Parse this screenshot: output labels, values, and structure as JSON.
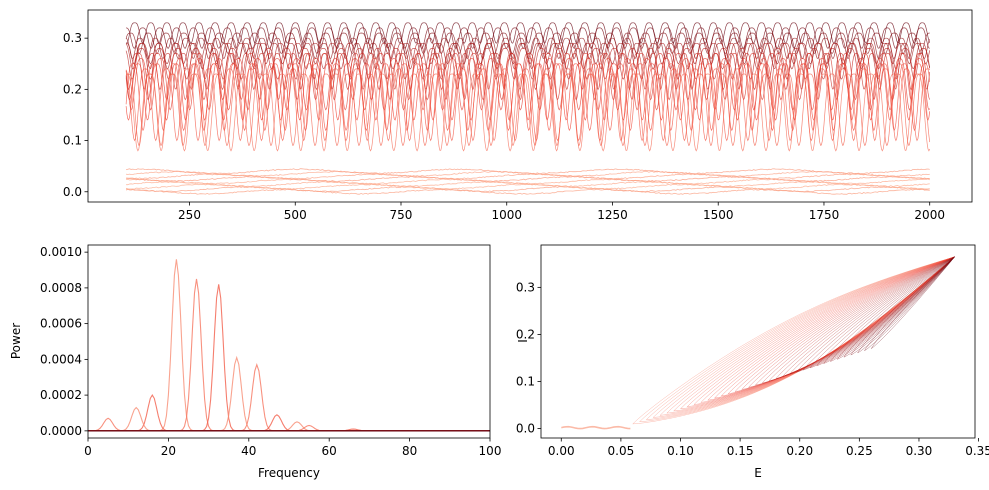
{
  "chart_data": [
    {
      "type": "line",
      "title": "",
      "xlabel": "",
      "ylabel": "",
      "xlim": [
        10,
        2100
      ],
      "ylim": [
        -0.02,
        0.355
      ],
      "xticks": [
        250,
        500,
        750,
        1000,
        1250,
        1500,
        1750,
        2000
      ],
      "yticks": [
        0.0,
        0.1,
        0.2,
        0.3
      ],
      "ytick_labels": [
        "0.0",
        "0.1",
        "0.2",
        "0.3"
      ],
      "grid": false,
      "series_count": 40,
      "t_range": [
        100,
        2000
      ],
      "colors": {
        "light": "#fcae91",
        "mid": "#ef3b2c",
        "dark": "#67000d"
      },
      "oscillating_bands": [
        {
          "min": 0.29,
          "max": 0.33,
          "period": 38
        },
        {
          "min": 0.28,
          "max": 0.32,
          "period": 40
        },
        {
          "min": 0.27,
          "max": 0.31,
          "period": 42
        },
        {
          "min": 0.26,
          "max": 0.3,
          "period": 36
        },
        {
          "min": 0.25,
          "max": 0.29,
          "period": 39
        },
        {
          "min": 0.24,
          "max": 0.29,
          "period": 41
        },
        {
          "min": 0.22,
          "max": 0.28,
          "period": 43
        },
        {
          "min": 0.2,
          "max": 0.27,
          "period": 37
        },
        {
          "min": 0.18,
          "max": 0.27,
          "period": 44
        },
        {
          "min": 0.16,
          "max": 0.26,
          "period": 46
        },
        {
          "min": 0.14,
          "max": 0.25,
          "period": 45
        },
        {
          "min": 0.12,
          "max": 0.25,
          "period": 48
        },
        {
          "min": 0.1,
          "max": 0.24,
          "period": 50
        },
        {
          "min": 0.09,
          "max": 0.23,
          "period": 52
        },
        {
          "min": 0.08,
          "max": 0.23,
          "period": 55
        }
      ],
      "flat_levels": [
        0.0,
        0.005,
        0.01,
        0.015,
        0.02,
        0.025,
        0.03,
        0.035,
        0.04
      ]
    },
    {
      "type": "line",
      "title": "",
      "xlabel": "Frequency",
      "ylabel": "Power",
      "xlim": [
        0,
        100
      ],
      "ylim": [
        -4e-05,
        0.00104
      ],
      "xticks": [
        0,
        20,
        40,
        60,
        80,
        100
      ],
      "yticks": [
        0.0,
        0.0002,
        0.0004,
        0.0006,
        0.0008,
        0.001
      ],
      "ytick_labels": [
        "0.0000",
        "0.0002",
        "0.0004",
        "0.0006",
        "0.0008",
        "0.0010"
      ],
      "grid": false,
      "peaks": [
        {
          "freq": 22,
          "power": 0.00096
        },
        {
          "freq": 27,
          "power": 0.00085
        },
        {
          "freq": 32.5,
          "power": 0.00082
        },
        {
          "freq": 37,
          "power": 0.00041
        },
        {
          "freq": 42,
          "power": 0.00037
        },
        {
          "freq": 16,
          "power": 0.0002
        },
        {
          "freq": 12,
          "power": 0.00013
        },
        {
          "freq": 5,
          "power": 7e-05
        },
        {
          "freq": 47,
          "power": 9e-05
        },
        {
          "freq": 52,
          "power": 5e-05
        },
        {
          "freq": 55,
          "power": 3e-05
        },
        {
          "freq": 66,
          "power": 1e-05
        }
      ]
    },
    {
      "type": "line",
      "title": "",
      "xlabel": "E",
      "ylabel": "I",
      "xlim": [
        -0.017,
        0.347
      ],
      "ylim": [
        -0.02,
        0.39
      ],
      "xticks": [
        0.0,
        0.05,
        0.1,
        0.15,
        0.2,
        0.25,
        0.3,
        0.35
      ],
      "xtick_labels": [
        "0.00",
        "0.05",
        "0.10",
        "0.15",
        "0.20",
        "0.25",
        "0.30",
        "0.35"
      ],
      "yticks": [
        0.0,
        0.1,
        0.2,
        0.3
      ],
      "ytick_labels": [
        "0.0",
        "0.1",
        "0.2",
        "0.3"
      ],
      "grid": false,
      "loop_count": 36,
      "upper_branch_point": [
        0.33,
        0.365
      ],
      "origin_cluster": [
        0.03,
        0.002
      ]
    }
  ]
}
